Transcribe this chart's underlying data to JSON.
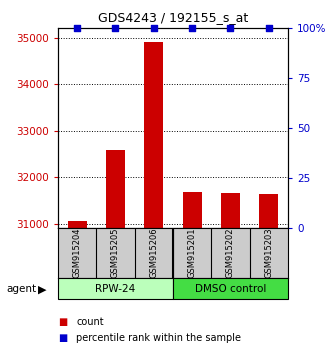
{
  "title": "GDS4243 / 192155_s_at",
  "samples": [
    "GSM915204",
    "GSM915205",
    "GSM915206",
    "GSM915201",
    "GSM915202",
    "GSM915203"
  ],
  "counts": [
    31050,
    32580,
    34900,
    31680,
    31670,
    31630
  ],
  "percentiles": [
    100,
    100,
    100,
    100,
    100,
    100
  ],
  "ylim_left": [
    30900,
    35200
  ],
  "ylim_right": [
    0,
    100
  ],
  "yticks_left": [
    31000,
    32000,
    33000,
    34000,
    35000
  ],
  "yticks_right": [
    0,
    25,
    50,
    75,
    100
  ],
  "bar_color": "#cc0000",
  "dot_color": "#0000cc",
  "group1_label": "RPW-24",
  "group2_label": "DMSO control",
  "group1_color": "#bbffbb",
  "group2_color": "#44dd44",
  "agent_label": "agent",
  "legend_count": "count",
  "legend_pct": "percentile rank within the sample",
  "tick_color_left": "#cc0000",
  "tick_color_right": "#0000cc",
  "bar_width": 0.5,
  "label_box_color": "#cccccc"
}
